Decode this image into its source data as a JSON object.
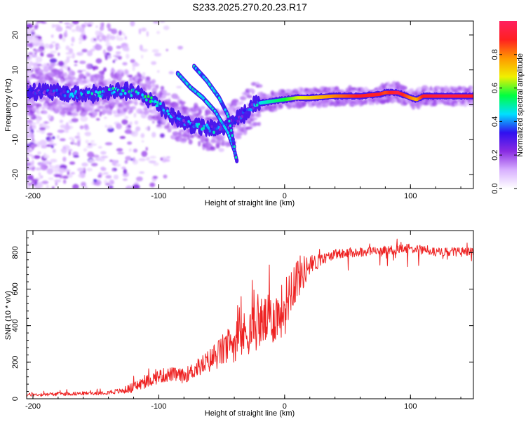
{
  "chart_data": [
    {
      "type": "heatmap",
      "title": "S233.2025.270.20.23.R17",
      "xlabel": "Height of straight line (km)",
      "ylabel": "Frequency (Hz)",
      "xlim": [
        -205,
        150
      ],
      "ylim": [
        -24,
        24
      ],
      "xticks": [
        -200,
        -100,
        0,
        100
      ],
      "yticks": [
        -20,
        -10,
        0,
        10,
        20
      ],
      "colorbar": {
        "label": "Normalized spectral amplitude",
        "range": [
          0,
          1
        ],
        "ticks": [
          0.0,
          0.2,
          0.4,
          0.6,
          0.8
        ],
        "tick_labels": [
          "0.0",
          "0.2",
          "0.4",
          "0.6",
          "0.8"
        ],
        "colors": [
          "#ffffff",
          "#d8b0ff",
          "#8a2be2",
          "#3010f0",
          "#00e0ff",
          "#00ff40",
          "#f0f000",
          "#ff9900",
          "#ff2020",
          "#ff2060"
        ]
      },
      "ridge_main": {
        "x": [
          -200,
          -180,
          -160,
          -140,
          -130,
          -120,
          -110,
          -100,
          -90,
          -80,
          -70,
          -60,
          -50,
          -40,
          -35,
          -30,
          -25,
          -20,
          -10,
          0,
          10,
          20,
          40,
          60,
          75,
          80,
          90,
          100,
          105,
          110,
          130,
          150
        ],
        "y": [
          4,
          3.5,
          3,
          3.5,
          4,
          3.5,
          2,
          0,
          -3,
          -5,
          -6,
          -7,
          -7,
          -5,
          -3,
          -2,
          0,
          0.5,
          1,
          1.5,
          2,
          2,
          2.5,
          2.5,
          3,
          3.5,
          3.5,
          2,
          1.5,
          2.5,
          2.5,
          2.5
        ],
        "amp": [
          0.3,
          0.35,
          0.4,
          0.45,
          0.5,
          0.45,
          0.5,
          0.45,
          0.4,
          0.35,
          0.4,
          0.45,
          0.35,
          0.3,
          0.35,
          0.35,
          0.4,
          0.45,
          0.5,
          0.55,
          0.65,
          0.7,
          0.8,
          0.9,
          0.9,
          0.85,
          0.95,
          0.8,
          0.75,
          0.9,
          0.95,
          0.9
        ]
      },
      "ridge_branches": [
        {
          "x": [
            -85,
            -75,
            -65,
            -55,
            -45,
            -40,
            -38
          ],
          "y": [
            9,
            5,
            2,
            -2,
            -8,
            -13,
            -16
          ]
        },
        {
          "x": [
            -72,
            -62,
            -52,
            -45,
            -42,
            -40
          ],
          "y": [
            11,
            7,
            2,
            -3,
            -8,
            -12
          ]
        }
      ]
    },
    {
      "type": "line",
      "xlabel": "Height of straight line (km)",
      "ylabel": "SNR (10 * v/v)",
      "xlim": [
        -205,
        150
      ],
      "ylim": [
        0,
        920
      ],
      "xticks": [
        -200,
        -100,
        0,
        100
      ],
      "yticks": [
        0,
        200,
        400,
        600,
        800
      ],
      "series": [
        {
          "name": "SNR",
          "color": "#ee2222",
          "x": [
            -205,
            -180,
            -150,
            -130,
            -120,
            -110,
            -100,
            -90,
            -80,
            -70,
            -60,
            -50,
            -40,
            -30,
            -20,
            -10,
            0,
            5,
            10,
            20,
            30,
            40,
            60,
            80,
            100,
            120,
            150
          ],
          "y": [
            20,
            25,
            30,
            40,
            60,
            90,
            120,
            130,
            120,
            160,
            200,
            250,
            300,
            350,
            400,
            420,
            480,
            600,
            650,
            720,
            760,
            790,
            800,
            810,
            820,
            800,
            800
          ],
          "noise": [
            20,
            20,
            20,
            30,
            60,
            70,
            80,
            80,
            80,
            100,
            130,
            180,
            220,
            260,
            280,
            280,
            300,
            300,
            250,
            120,
            60,
            50,
            50,
            50,
            50,
            50,
            50
          ]
        }
      ]
    }
  ]
}
